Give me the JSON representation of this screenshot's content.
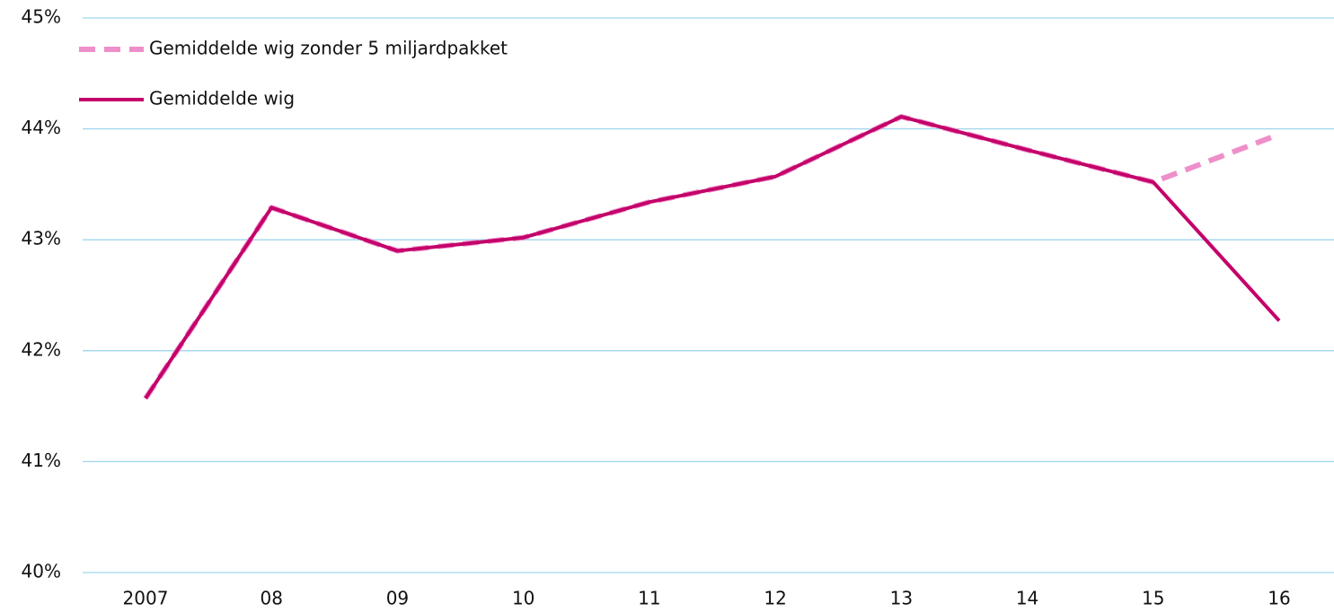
{
  "chart_data": {
    "type": "line",
    "categories": [
      "2007",
      "08",
      "09",
      "10",
      "11",
      "12",
      "13",
      "14",
      "15",
      "16"
    ],
    "series": [
      {
        "name": "Gemiddelde wig zonder 5 miljardpakket",
        "color": "#ee8fc9",
        "dashed": true,
        "values": [
          41.57,
          43.29,
          42.9,
          43.02,
          43.34,
          43.57,
          44.11,
          43.81,
          43.52,
          43.95
        ]
      },
      {
        "name": "Gemiddelde wig",
        "color": "#c4006a",
        "dashed": false,
        "values": [
          41.57,
          43.29,
          42.9,
          43.02,
          43.34,
          43.57,
          44.11,
          43.81,
          43.52,
          42.27
        ]
      }
    ],
    "ylim": [
      40,
      45
    ],
    "yticks": [
      {
        "value": 40,
        "label": "40%"
      },
      {
        "value": 41,
        "label": "41%"
      },
      {
        "value": 42,
        "label": "42%"
      },
      {
        "value": 43,
        "label": "43%"
      },
      {
        "value": 44,
        "label": "44%"
      },
      {
        "value": 45,
        "label": "45%"
      }
    ],
    "grid": true
  }
}
